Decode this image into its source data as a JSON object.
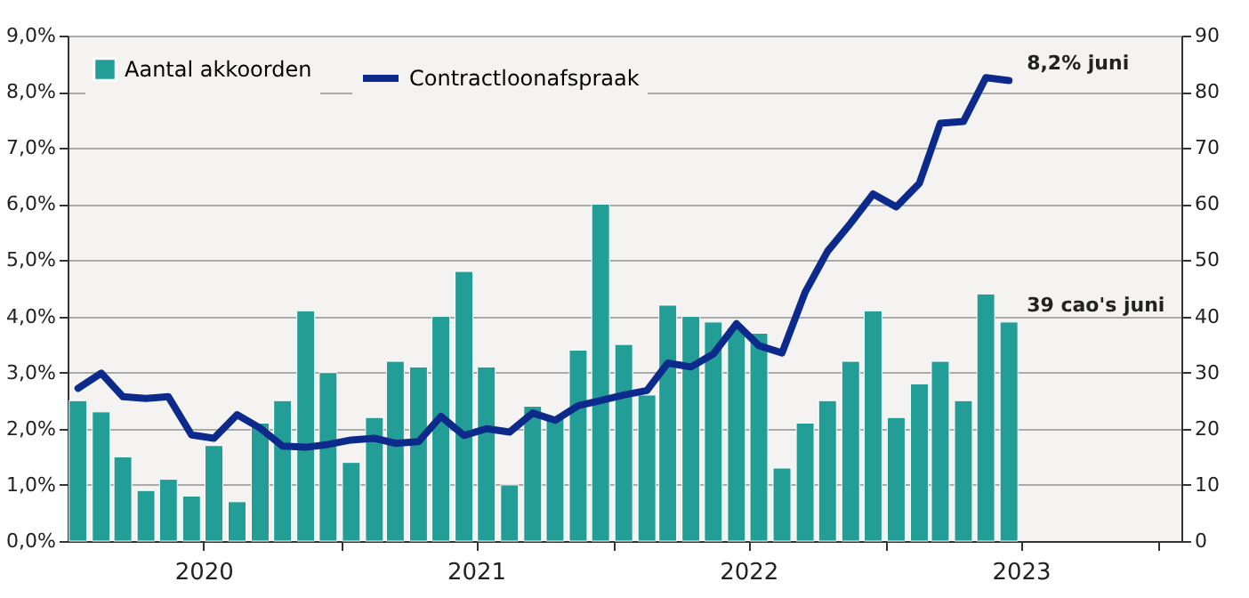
{
  "chart_data": {
    "type": "bar",
    "x": [
      "2020-01-15",
      "2020-02-15",
      "2020-03-15",
      "2020-04-15",
      "2020-05-15",
      "2020-06-15",
      "2020-07-15",
      "2020-08-15",
      "2020-09-15",
      "2020-10-15",
      "2020-11-15",
      "2020-12-15",
      "2021-01-15",
      "2021-02-15",
      "2021-03-15",
      "2021-04-15",
      "2021-05-15",
      "2021-06-15",
      "2021-07-15",
      "2021-08-15",
      "2021-09-15",
      "2021-10-15",
      "2021-11-15",
      "2021-12-15",
      "2022-01-15",
      "2022-02-15",
      "2022-03-15",
      "2022-04-15",
      "2022-05-15",
      "2022-06-15",
      "2022-07-15",
      "2022-08-15",
      "2022-09-15",
      "2022-10-15",
      "2022-11-15",
      "2022-12-15",
      "2023-01-15",
      "2023-02-15",
      "2023-03-15",
      "2023-04-15",
      "2023-05-15",
      "2023-06-15"
    ],
    "series": [
      {
        "name": "Aantal akkoorden",
        "axis": "y2",
        "color": "#239e96",
        "values": [
          25,
          23,
          15,
          9,
          11,
          8,
          17,
          7,
          21,
          25,
          41,
          30,
          14,
          22,
          32,
          31,
          40,
          48,
          31,
          10,
          24,
          22,
          34,
          60,
          35,
          26,
          42,
          40,
          39,
          38,
          37,
          13,
          21,
          25,
          32,
          41,
          22,
          28,
          32,
          25,
          44,
          39
        ]
      },
      {
        "name": "Contractloonafspraak",
        "type": "line",
        "color": "#0b2a8c",
        "values": [
          2.72,
          2.99,
          2.57,
          2.54,
          2.57,
          1.89,
          1.83,
          2.25,
          2.01,
          1.69,
          1.67,
          1.72,
          1.8,
          1.83,
          1.74,
          1.77,
          2.22,
          1.88,
          2.0,
          1.94,
          2.28,
          2.15,
          2.41,
          2.5,
          2.6,
          2.68,
          3.17,
          3.1,
          3.33,
          3.87,
          3.48,
          3.35,
          4.43,
          5.16,
          5.66,
          6.18,
          5.95,
          6.37,
          7.44,
          7.47,
          8.25,
          8.2
        ]
      }
    ],
    "xlim": [
      "2020-01-01",
      "2024-02-01"
    ],
    "xticks": [
      {
        "value": "2020-07-01",
        "label": "2020"
      },
      {
        "value": "2021-01-01",
        "label": null
      },
      {
        "value": "2021-07-01",
        "label": "2021"
      },
      {
        "value": "2022-01-01",
        "label": null
      },
      {
        "value": "2022-07-01",
        "label": "2022"
      },
      {
        "value": "2023-01-01",
        "label": null
      },
      {
        "value": "2023-07-01",
        "label": "2023"
      },
      {
        "value": "2024-01-01",
        "label": null
      }
    ],
    "ylim": [
      0,
      9
    ],
    "yticks": [
      {
        "value": 0,
        "label": "0,0%"
      },
      {
        "value": 1,
        "label": "1,0%"
      },
      {
        "value": 2,
        "label": "2,0%"
      },
      {
        "value": 3,
        "label": "3,0%"
      },
      {
        "value": 4,
        "label": "4,0%"
      },
      {
        "value": 5,
        "label": "5,0%"
      },
      {
        "value": 6,
        "label": "6,0%"
      },
      {
        "value": 7,
        "label": "7,0%"
      },
      {
        "value": 8,
        "label": "8,0%"
      },
      {
        "value": 9,
        "label": "9,0%"
      }
    ],
    "y2lim": [
      0,
      90
    ],
    "y2ticks": [
      0,
      10,
      20,
      30,
      40,
      50,
      60,
      70,
      80,
      90
    ],
    "annotations": [
      {
        "text": "8,2% juni",
        "x": "2023-06-15",
        "y": 8.2
      },
      "39 cao's juni"
    ],
    "grid": true,
    "legend": "top left"
  }
}
